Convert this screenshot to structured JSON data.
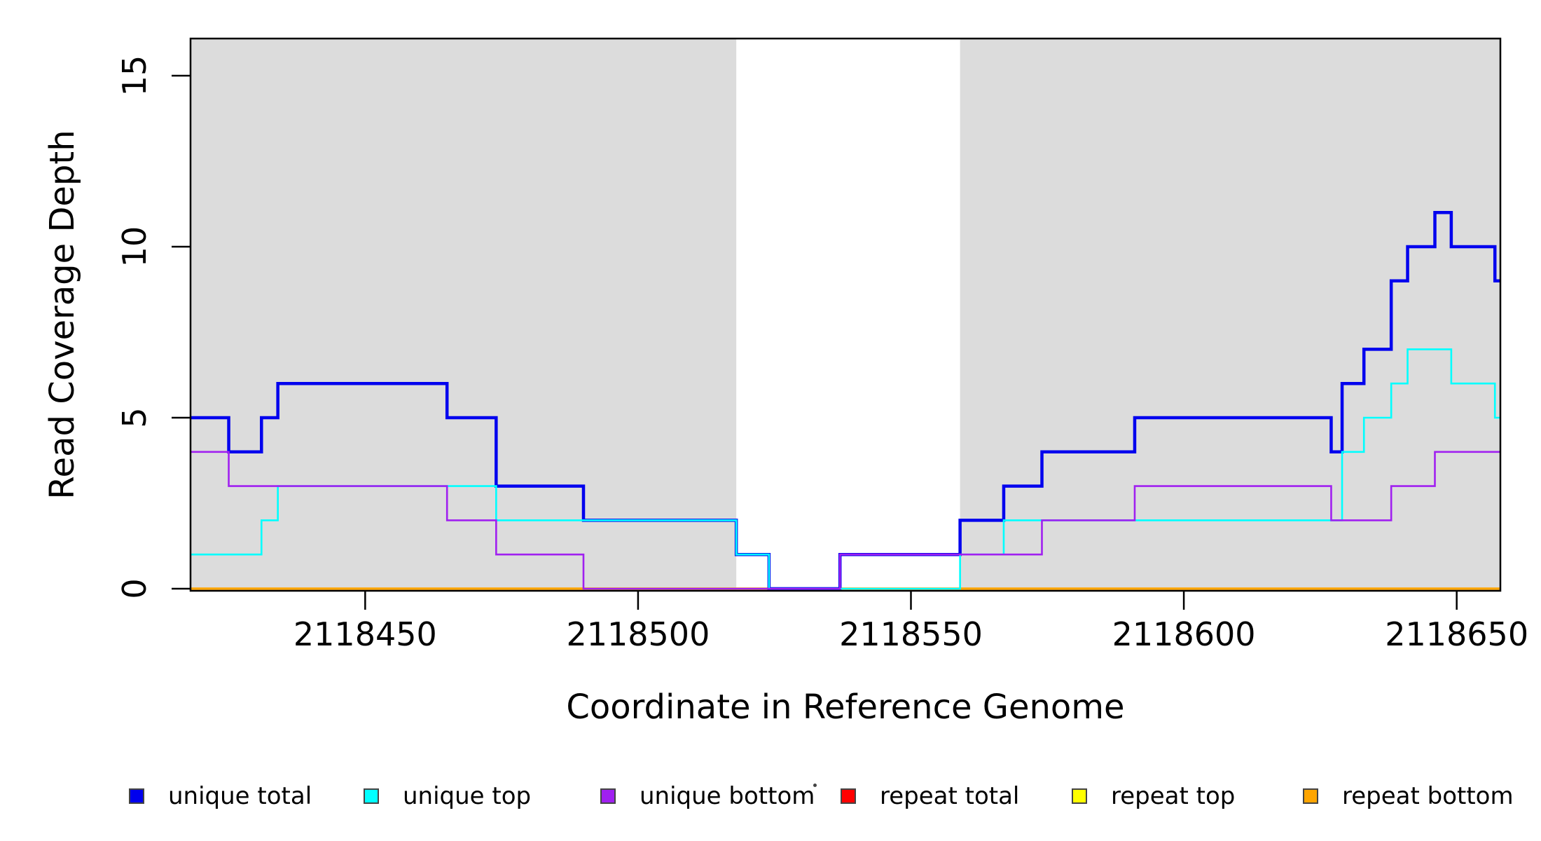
{
  "figure": {
    "background": "#ffffff",
    "shade_color": "#DCDCDC",
    "axis_color": "#000000"
  },
  "chart_data": {
    "type": "line",
    "subtype": "step-coverage",
    "title": "",
    "xlabel": "Coordinate in Reference Genome",
    "ylabel": "Read Coverage Depth",
    "xlim": [
      2118418,
      2118658
    ],
    "ylim": [
      0,
      16.1
    ],
    "grid": false,
    "legend_position": "bottom",
    "x_ticks": [
      2118450,
      2118500,
      2118550,
      2118600,
      2118650
    ],
    "x_tick_labels": [
      "2118450",
      "2118500",
      "2118550",
      "2118600",
      "2118650"
    ],
    "y_ticks": [
      0,
      5,
      10,
      15
    ],
    "y_tick_labels": [
      "0",
      "5",
      "10",
      "15"
    ],
    "shaded_regions": [
      {
        "x1": 2118418,
        "x2": 2118518
      },
      {
        "x1": 2118559,
        "x2": 2118658
      }
    ],
    "x_end": 2118658,
    "series": [
      {
        "name": "repeat total",
        "color": "#FF0000",
        "width": 3.0,
        "steps": [
          [
            2118418,
            0
          ]
        ]
      },
      {
        "name": "repeat top",
        "color": "#FFFF00",
        "width": 2.6,
        "steps": [
          [
            2118418,
            0
          ]
        ]
      },
      {
        "name": "repeat bottom",
        "color": "#FFA500",
        "width": 3.5,
        "steps": [
          [
            2118418,
            0
          ]
        ]
      },
      {
        "name": "unique total",
        "color": "#0000EE",
        "width": 4.5,
        "steps": [
          [
            2118418,
            5
          ],
          [
            2118425,
            4
          ],
          [
            2118431,
            5
          ],
          [
            2118434,
            6
          ],
          [
            2118465,
            5
          ],
          [
            2118474,
            3
          ],
          [
            2118490,
            2
          ],
          [
            2118518,
            1
          ],
          [
            2118524,
            0
          ],
          [
            2118537,
            1
          ],
          [
            2118559,
            2
          ],
          [
            2118567,
            3
          ],
          [
            2118574,
            4
          ],
          [
            2118591,
            5
          ],
          [
            2118627,
            4
          ],
          [
            2118629,
            6
          ],
          [
            2118633,
            7
          ],
          [
            2118638,
            9
          ],
          [
            2118641,
            10
          ],
          [
            2118646,
            11
          ],
          [
            2118649,
            10
          ],
          [
            2118657,
            9
          ]
        ]
      },
      {
        "name": "unique top",
        "color": "#00FFFF",
        "width": 2.6,
        "steps": [
          [
            2118418,
            1
          ],
          [
            2118431,
            2
          ],
          [
            2118434,
            3
          ],
          [
            2118474,
            2
          ],
          [
            2118518,
            1
          ],
          [
            2118524,
            0
          ],
          [
            2118559,
            1
          ],
          [
            2118567,
            2
          ],
          [
            2118629,
            4
          ],
          [
            2118633,
            5
          ],
          [
            2118638,
            6
          ],
          [
            2118641,
            7
          ],
          [
            2118649,
            6
          ],
          [
            2118657,
            5
          ]
        ]
      },
      {
        "name": "unique bottom",
        "color": "#A020F0",
        "width": 2.6,
        "steps": [
          [
            2118418,
            4
          ],
          [
            2118425,
            3
          ],
          [
            2118465,
            2
          ],
          [
            2118474,
            1
          ],
          [
            2118490,
            0
          ],
          [
            2118537,
            1
          ],
          [
            2118574,
            2
          ],
          [
            2118591,
            3
          ],
          [
            2118627,
            2
          ],
          [
            2118638,
            3
          ],
          [
            2118646,
            4
          ]
        ]
      }
    ],
    "legend_order": [
      "unique total",
      "unique top",
      "unique bottom",
      "repeat total",
      "repeat top",
      "repeat bottom"
    ]
  }
}
